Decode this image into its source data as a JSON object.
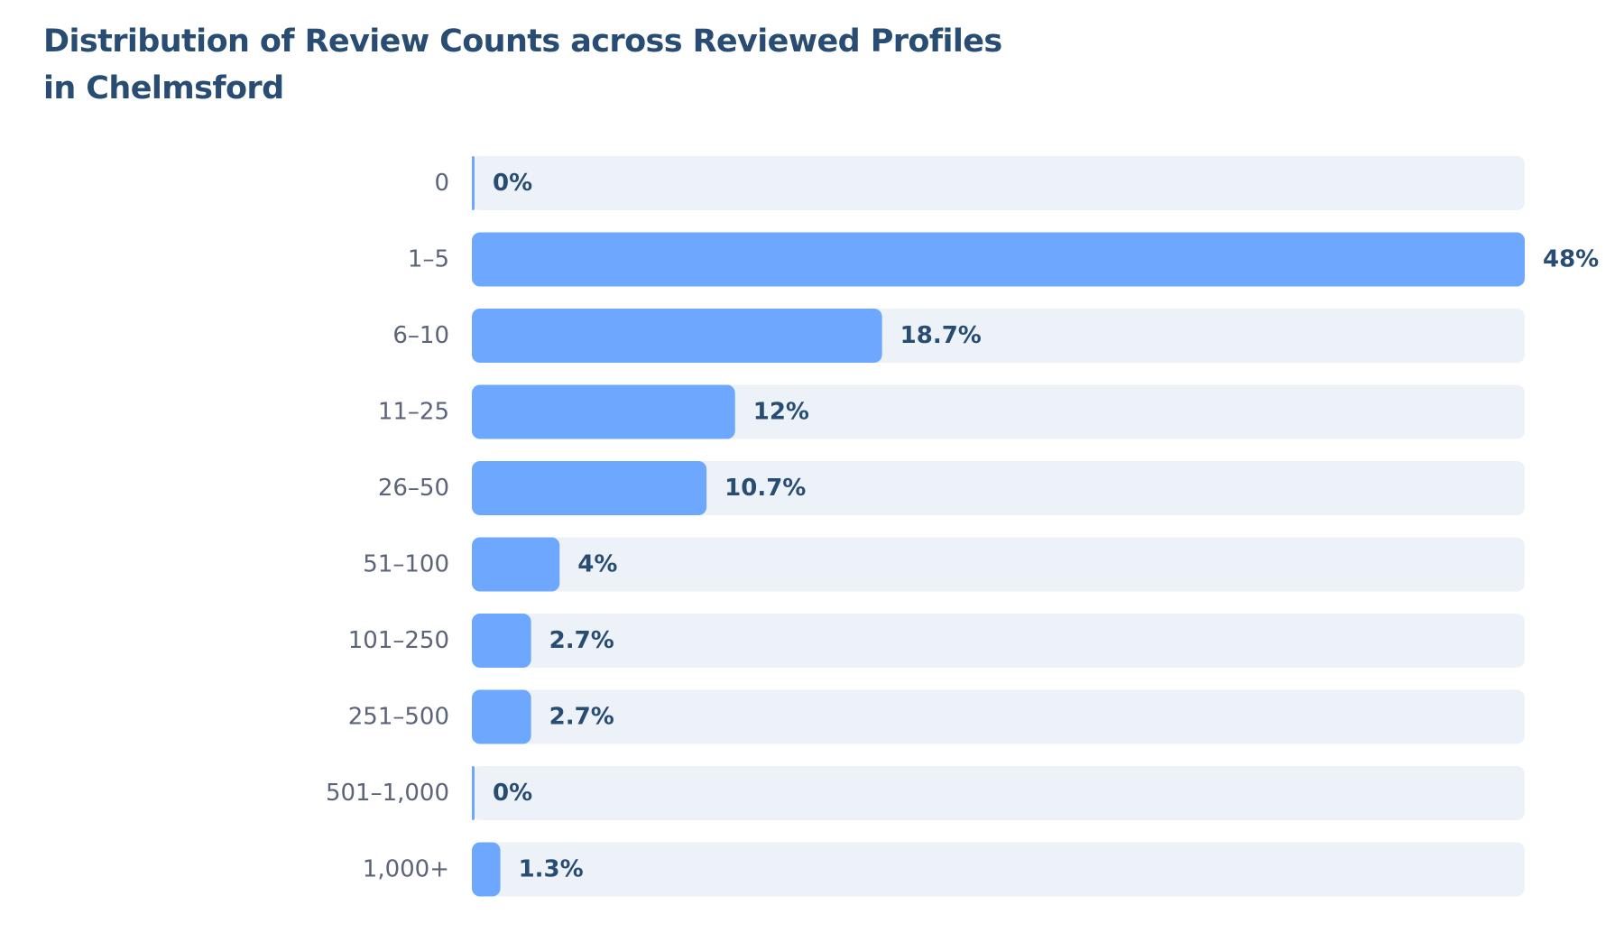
{
  "chart_data": {
    "type": "bar",
    "orientation": "horizontal",
    "title": "Distribution of Review Counts across Reviewed Profiles in Chelmsford",
    "categories": [
      "0",
      "1–5",
      "6–10",
      "11–25",
      "26–50",
      "51–100",
      "101–250",
      "251–500",
      "501–1,000",
      "1,000+"
    ],
    "values": [
      0,
      48,
      18.7,
      12,
      10.7,
      4,
      2.7,
      2.7,
      0,
      1.3
    ],
    "value_labels": [
      "0%",
      "48%",
      "18.7%",
      "12%",
      "10.7%",
      "4%",
      "2.7%",
      "2.7%",
      "0%",
      "1.3%"
    ],
    "unit": "%",
    "xlim": [
      0,
      48
    ],
    "grid": false,
    "legend": "none",
    "colors": {
      "bar": "#6ea8fe",
      "track": "#edf2f9",
      "title": "#284c72",
      "category_text": "#5b6478",
      "value_text": "#284c72"
    }
  }
}
